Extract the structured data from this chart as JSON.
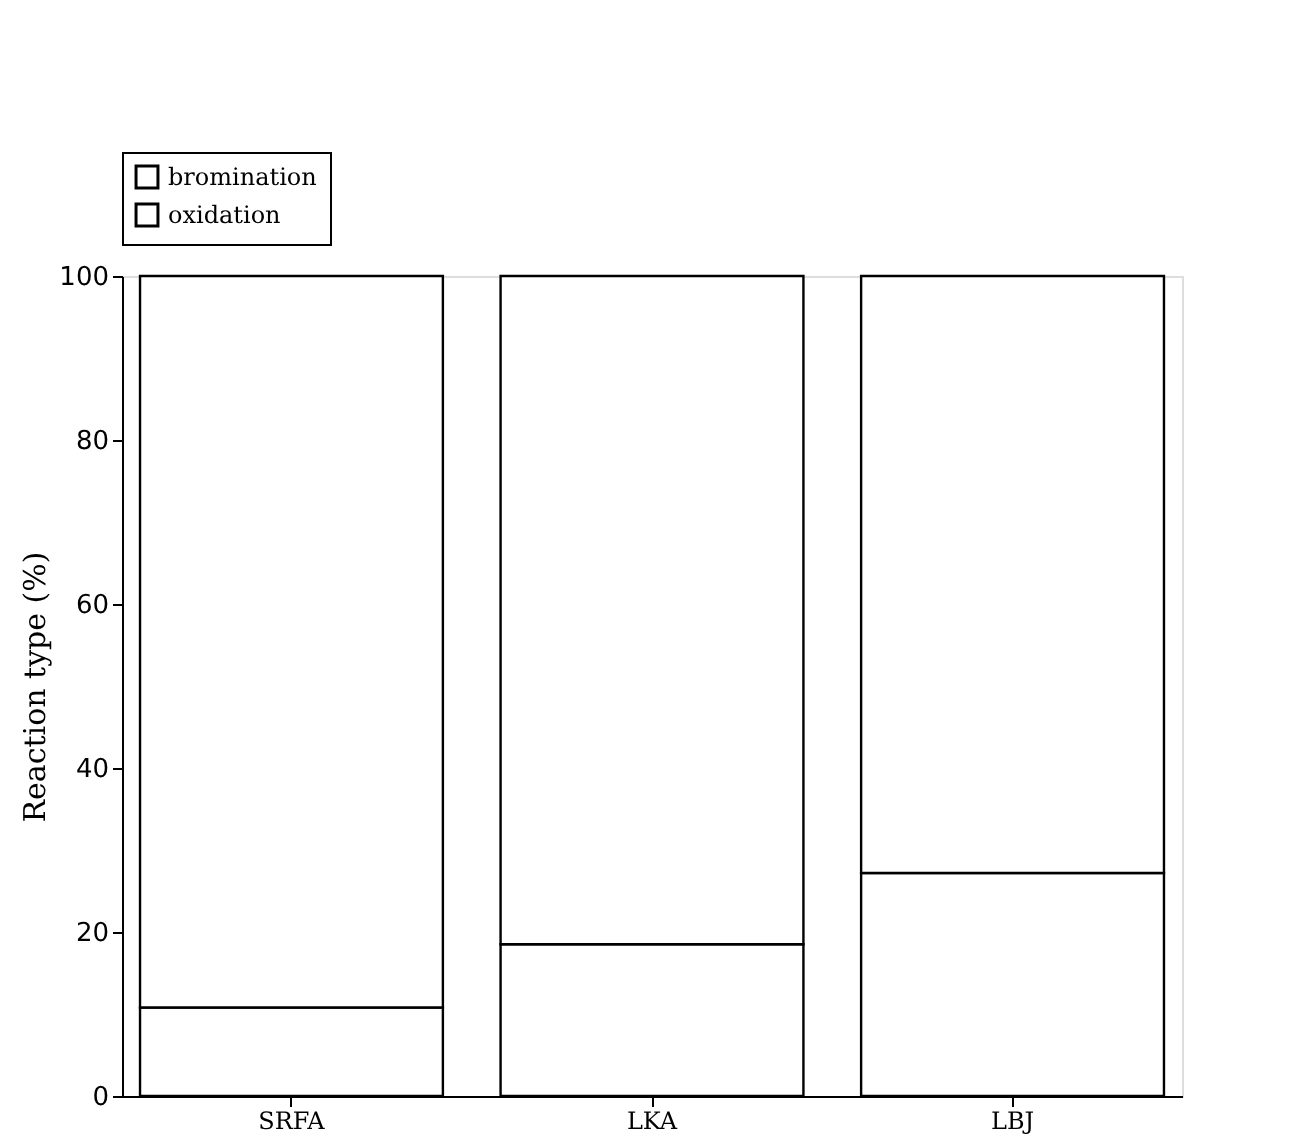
{
  "chart_data": {
    "type": "bar",
    "stacked": true,
    "ylabel": "Reaction type (%)",
    "categories": [
      "SRFA",
      "LKA",
      "LBJ"
    ],
    "series": [
      {
        "name": "bromination",
        "color": "#ffffff",
        "values": [
          10.8,
          18.5,
          27.2
        ]
      },
      {
        "name": "oxidation",
        "color": "#ffffff",
        "values": [
          89.2,
          81.5,
          72.8
        ]
      }
    ],
    "ylim": [
      0,
      100
    ],
    "yticks": [
      0,
      20,
      40,
      60,
      80,
      100
    ],
    "grid": false,
    "legend": "top left"
  }
}
